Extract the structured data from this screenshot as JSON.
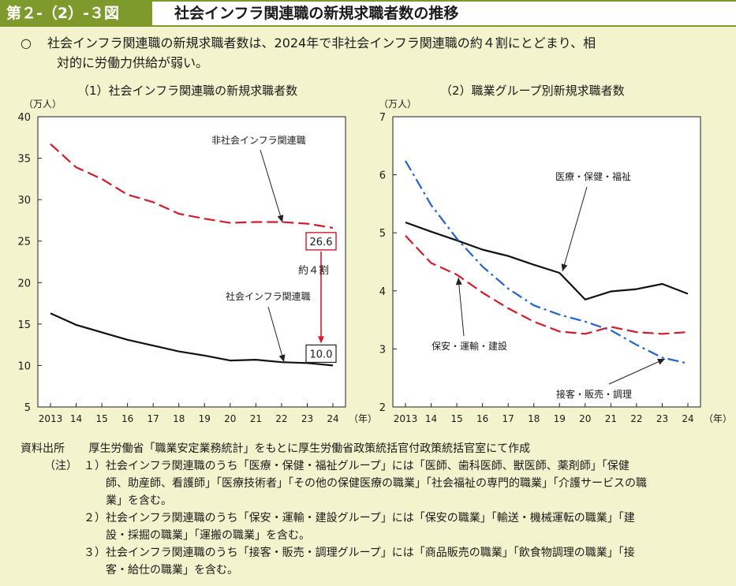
{
  "header": {
    "figure_number": "第２-（2）-３図",
    "title": "社会インフラ関連職の新規求職者数の推移"
  },
  "summary": {
    "bullet": "○",
    "line1": "社会インフラ関連職の新規求職者数は、2024年で非社会インフラ関連職の約４割にとどまり、相",
    "line2": "対的に労働力供給が弱い。"
  },
  "chart_data": [
    {
      "type": "line",
      "title": "（1）社会インフラ関連職の新規求職者数",
      "ylabel": "（万人）",
      "xlabel": "（年）",
      "x": [
        2013,
        2014,
        2015,
        2016,
        2017,
        2018,
        2019,
        2020,
        2021,
        2022,
        2023,
        2024
      ],
      "categories": [
        "2013",
        "14",
        "15",
        "16",
        "17",
        "18",
        "19",
        "20",
        "21",
        "22",
        "23",
        "24"
      ],
      "ylim": [
        5,
        40
      ],
      "yticks": [
        5,
        10,
        15,
        20,
        25,
        30,
        35,
        40
      ],
      "series": [
        {
          "name": "非社会インフラ関連職",
          "style": "dashed",
          "color": "#d7192a",
          "values": [
            36.7,
            33.9,
            32.5,
            30.6,
            29.7,
            28.3,
            27.7,
            27.2,
            27.3,
            27.3,
            27.1,
            26.6
          ]
        },
        {
          "name": "社会インフラ関連職",
          "style": "solid",
          "color": "#111111",
          "values": [
            16.3,
            14.9,
            14.0,
            13.1,
            12.4,
            11.7,
            11.2,
            10.6,
            10.7,
            10.4,
            10.3,
            10.0
          ]
        }
      ],
      "annotations": {
        "end_label_high": "26.6",
        "end_label_low": "10.0",
        "ratio_label": "約４割"
      }
    },
    {
      "type": "line",
      "title": "（2）職業グループ別新規求職者数",
      "ylabel": "（万人）",
      "xlabel": "（年）",
      "x": [
        2013,
        2014,
        2015,
        2016,
        2017,
        2018,
        2019,
        2020,
        2021,
        2022,
        2023,
        2024
      ],
      "categories": [
        "2013",
        "14",
        "15",
        "16",
        "17",
        "18",
        "19",
        "20",
        "21",
        "22",
        "23",
        "24"
      ],
      "ylim": [
        2,
        7
      ],
      "yticks": [
        2,
        3,
        4,
        5,
        6,
        7
      ],
      "series": [
        {
          "name": "医療・保健・福祉",
          "style": "solid",
          "color": "#111111",
          "values": [
            5.18,
            5.02,
            4.87,
            4.71,
            4.6,
            4.45,
            4.31,
            3.85,
            3.99,
            4.03,
            4.12,
            3.95
          ]
        },
        {
          "name": "保安・運輸・建設",
          "style": "dashed",
          "color": "#d7192a",
          "values": [
            4.95,
            4.48,
            4.28,
            3.97,
            3.7,
            3.47,
            3.3,
            3.26,
            3.38,
            3.29,
            3.26,
            3.29
          ]
        },
        {
          "name": "接客・販売・調理",
          "style": "dashdot",
          "color": "#1f63d1",
          "values": [
            6.24,
            5.48,
            4.9,
            4.42,
            4.04,
            3.75,
            3.59,
            3.47,
            3.32,
            3.07,
            2.85,
            2.75
          ]
        }
      ]
    }
  ],
  "notes": {
    "source_label": "資料出所",
    "source_text": "厚生労働省「職業安定業務統計」をもとに厚生労働省政策統括官付政策統括官室にて作成",
    "note_label": "（注）",
    "items": [
      {
        "num": "１）",
        "lines": [
          "社会インフラ関連職のうち「医療・保健・福祉グループ」には「医師、歯科医師、獣医師、薬剤師」「保健",
          "師、助産師、看護師」「医療技術者」「その他の保健医療の職業」「社会福祉の専門的職業」「介護サービスの職",
          "業」を含む。"
        ]
      },
      {
        "num": "２）",
        "lines": [
          "社会インフラ関連職のうち「保安・運輸・建設グループ」には「保安の職業」「輸送・機械運転の職業」「建",
          "設・採掘の職業」「運搬の職業」を含む。"
        ]
      },
      {
        "num": "３）",
        "lines": [
          "社会インフラ関連職のうち「接客・販売・調理グループ」には「商品販売の職業」「飲食物調理の職業」「接",
          "客・給仕の職業」を含む。"
        ]
      }
    ]
  }
}
